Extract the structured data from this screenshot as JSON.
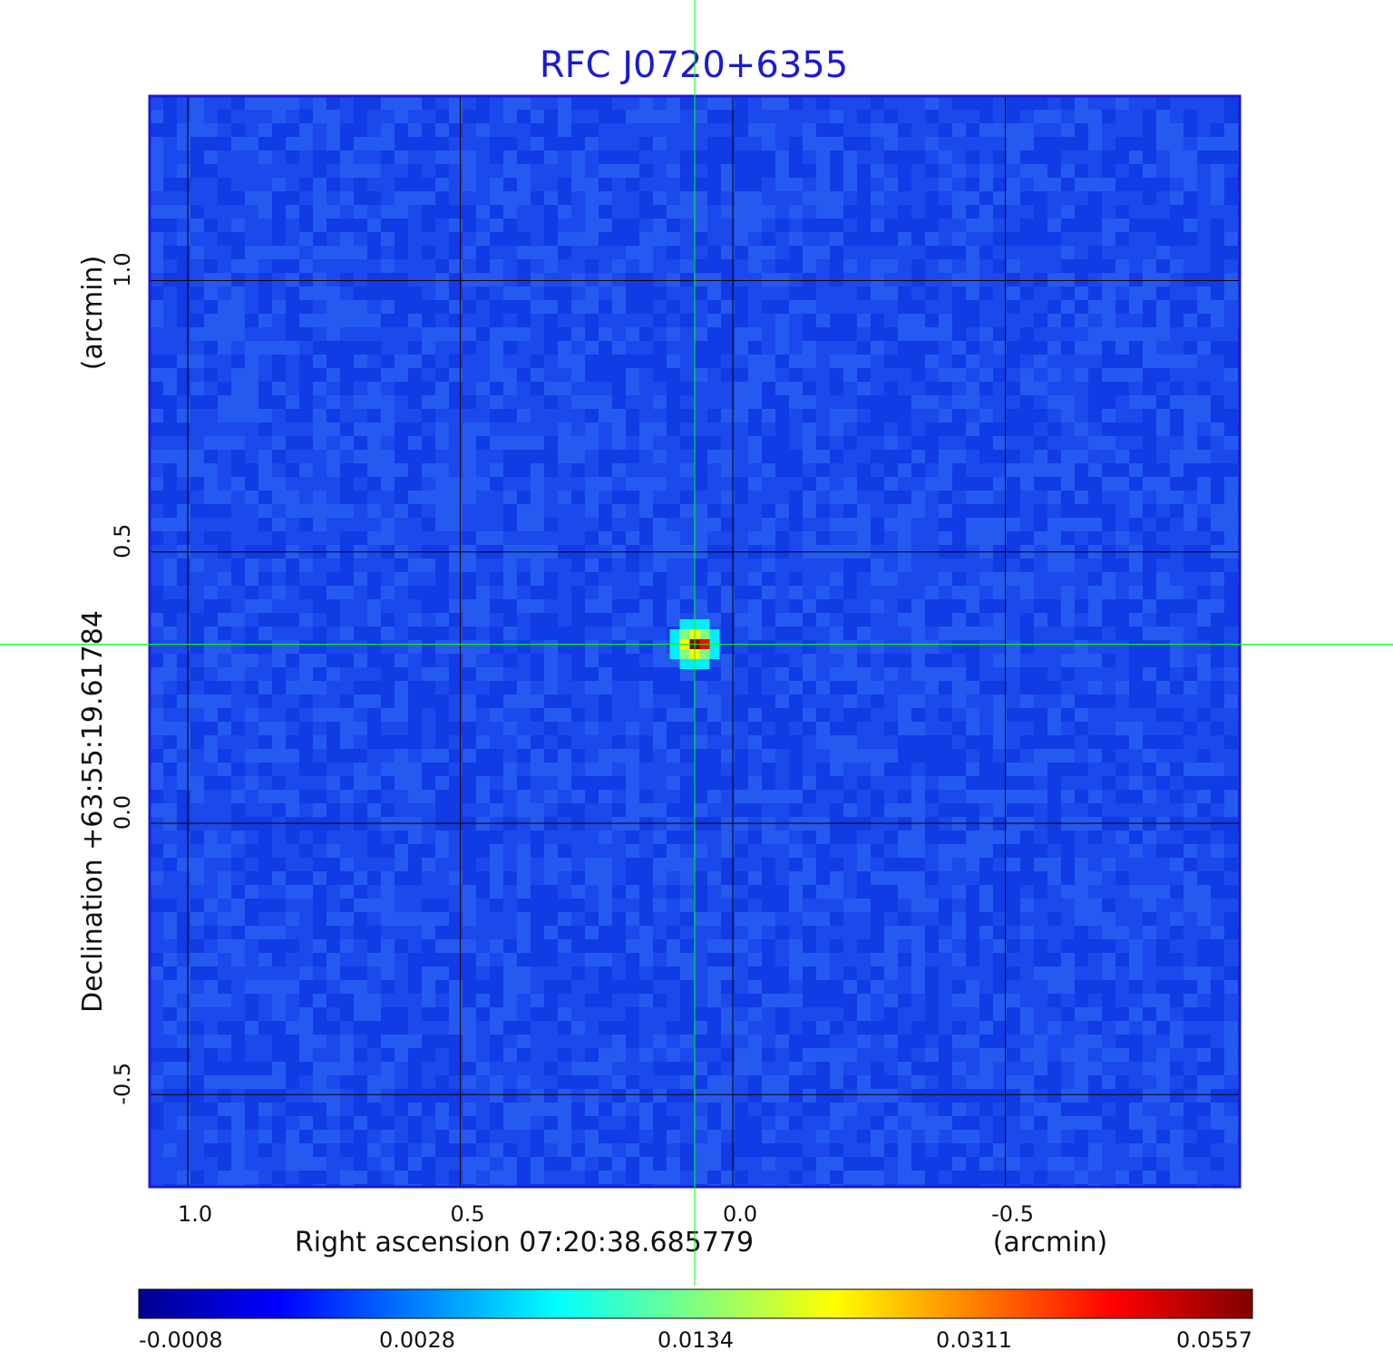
{
  "chart_data": {
    "type": "heatmap",
    "title": "RFC J0720+6355",
    "xlabel": "Right ascension  07:20:38.685779",
    "xunit": "(arcmin)",
    "ylabel": "Declination  +63:55:19.61784",
    "yunit": "(arcmin)",
    "xlim": [
      1.07,
      -0.93
    ],
    "ylim": [
      -0.67,
      1.34
    ],
    "x_ticks": [
      1.0,
      0.5,
      0.0,
      -0.5
    ],
    "x_tick_labels": [
      "1.0",
      "0.5",
      "0.0",
      "-0.5"
    ],
    "y_ticks": [
      1.0,
      0.5,
      0.0,
      -0.5
    ],
    "y_tick_labels": [
      "1.0",
      "0.5",
      "0.0",
      "-0.5"
    ],
    "grid": true,
    "source_peak": {
      "x": 0.07,
      "y": 0.33,
      "value": 0.0557
    },
    "crosshair": {
      "x": 0.07,
      "y": 0.33
    },
    "colorbar": {
      "ticks": [
        -0.0008,
        0.0028,
        0.0134,
        0.0311,
        0.0557
      ],
      "tick_labels": [
        "-0.0008",
        "0.0028",
        "0.0134",
        "0.0311",
        "0.0557"
      ],
      "colormap": [
        "#00008f",
        "#0000ff",
        "#0080ff",
        "#00ffff",
        "#80ff80",
        "#ffff00",
        "#ff8000",
        "#ff0000",
        "#800000"
      ]
    },
    "background_color": "#1b49ec",
    "frame_color": "#1a1ad4",
    "grid_color": "#000000",
    "crosshair_color": "#00ff00"
  }
}
